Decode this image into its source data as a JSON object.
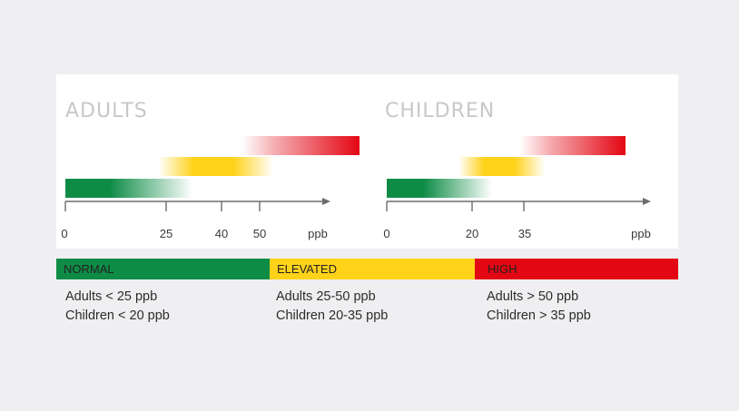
{
  "panels": {
    "adults": {
      "title": "ADULTS",
      "ticks": [
        "0",
        "25",
        "40",
        "50"
      ],
      "unit": "ppb"
    },
    "children": {
      "title": "CHILDREN",
      "ticks": [
        "0",
        "20",
        "35"
      ],
      "unit": "ppb"
    }
  },
  "categories": [
    {
      "label": "NORMAL",
      "color": "#0e8c46",
      "lines": [
        "Adults < 25 ppb",
        "Children < 20 ppb"
      ]
    },
    {
      "label": "ELEVATED",
      "color": "#ffd21a",
      "lines": [
        "Adults 25-50 ppb",
        "Children 20-35 ppb"
      ]
    },
    {
      "label": "HIGH",
      "color": "#e30613",
      "lines": [
        "Adults > 50 ppb",
        "Children > 35 ppb"
      ]
    }
  ],
  "colors": {
    "green": "#0e8c46",
    "yellow": "#ffd21a",
    "red": "#e30613",
    "axis": "#6b6b6b",
    "background": "#efeff1"
  }
}
